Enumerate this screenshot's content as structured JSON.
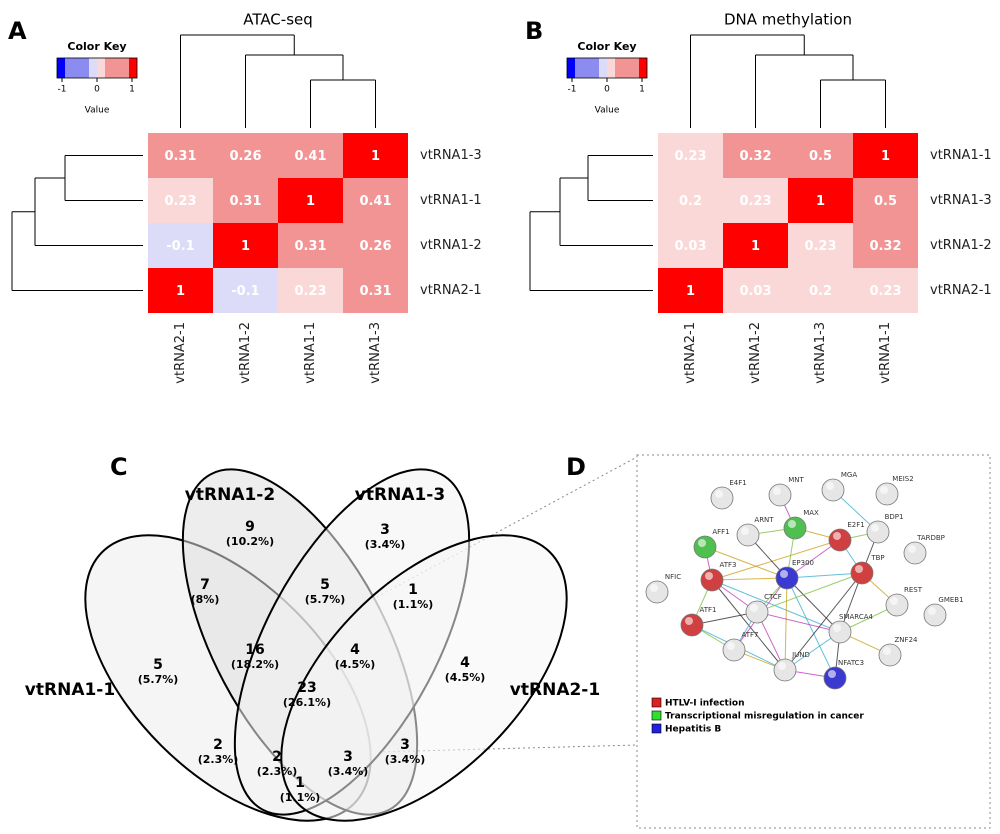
{
  "heatmaps": [
    {
      "letter": "A",
      "title": "ATAC-seq",
      "color_key": {
        "title": "Color Key",
        "ticks": [
          -1,
          0,
          1
        ],
        "axis_label": "Value"
      },
      "rows": [
        "vtRNA1-3",
        "vtRNA1-1",
        "vtRNA1-2",
        "vtRNA2-1"
      ],
      "columns": [
        "vtRNA2-1",
        "vtRNA1-2",
        "vtRNA1-1",
        "vtRNA1-3"
      ],
      "cells": [
        [
          0.31,
          0.26,
          0.41,
          1
        ],
        [
          0.23,
          0.31,
          1,
          0.41
        ],
        [
          -0.1,
          1,
          0.31,
          0.26
        ],
        [
          1,
          -0.1,
          0.23,
          0.31
        ]
      ]
    },
    {
      "letter": "B",
      "title": "DNA methylation",
      "color_key": {
        "title": "Color Key",
        "ticks": [
          -1,
          0,
          1
        ],
        "axis_label": "Value"
      },
      "rows": [
        "vtRNA1-1",
        "vtRNA1-3",
        "vtRNA1-2",
        "vtRNA2-1"
      ],
      "columns": [
        "vtRNA2-1",
        "vtRNA1-2",
        "vtRNA1-3",
        "vtRNA1-1"
      ],
      "cells": [
        [
          0.23,
          0.32,
          0.5,
          1
        ],
        [
          0.2,
          0.23,
          1,
          0.5
        ],
        [
          0.03,
          1,
          0.23,
          0.32
        ],
        [
          1,
          0.03,
          0.2,
          0.23
        ]
      ]
    }
  ],
  "venn": {
    "letter": "C",
    "sets": [
      "vtRNA1-1",
      "vtRNA1-2",
      "vtRNA1-3",
      "vtRNA2-1"
    ],
    "regions": [
      {
        "count": 9,
        "percent": "(10.2%)"
      },
      {
        "count": 3,
        "percent": "(3.4%)"
      },
      {
        "count": 7,
        "percent": "(8%)"
      },
      {
        "count": 5,
        "percent": "(5.7%)"
      },
      {
        "count": 1,
        "percent": "(1.1%)"
      },
      {
        "count": 5,
        "percent": "(5.7%)"
      },
      {
        "count": 16,
        "percent": "(18.2%)"
      },
      {
        "count": 4,
        "percent": "(4.5%)"
      },
      {
        "count": 4,
        "percent": "(4.5%)"
      },
      {
        "count": 23,
        "percent": "(26.1%)"
      },
      {
        "count": 2,
        "percent": "(2.3%)"
      },
      {
        "count": 3,
        "percent": "(3.4%)"
      },
      {
        "count": 2,
        "percent": "(2.3%)"
      },
      {
        "count": 3,
        "percent": "(3.4%)"
      },
      {
        "count": 1,
        "percent": "(1.1%)"
      }
    ]
  },
  "network": {
    "letter": "D",
    "nodes": [
      "E4F1",
      "MNT",
      "MGA",
      "MEIS2",
      "ARNT",
      "MAX",
      "E2F1",
      "BDP1",
      "TARDBP",
      "AFF1",
      "ATF3",
      "EP300",
      "TBP",
      "NFIC",
      "REST",
      "GMEB1",
      "CTCF",
      "SMARCA4",
      "ATF1",
      "ATF7",
      "ZNF24",
      "JUND",
      "NFATC3"
    ],
    "legend": [
      "HTLV-I infection",
      "Transcriptional misregulation in cancer",
      "Hepatitis B"
    ]
  }
}
